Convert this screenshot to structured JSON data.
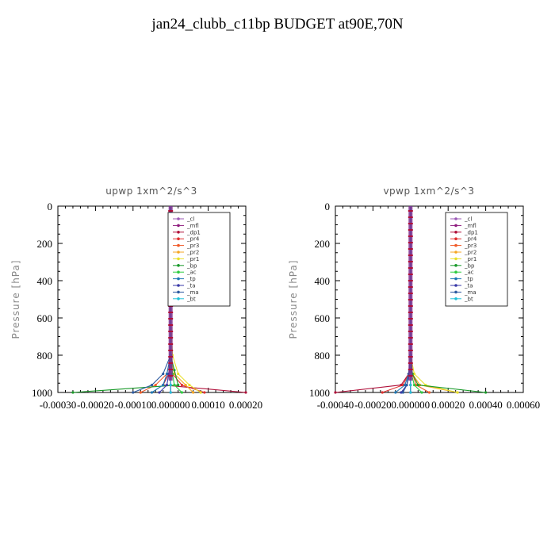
{
  "figure": {
    "title": "jan24_clubb_c11bp  BUDGET at90E,70N"
  },
  "chart_data": [
    {
      "type": "line",
      "title": "upwp   1xm^2/s^3",
      "ylabel": "Pressure [hPa]",
      "xlim": [
        -0.0003,
        0.0002
      ],
      "ylim": [
        1000,
        0
      ],
      "xticks": [
        -0.0003,
        -0.0002,
        -0.0001,
        0.0,
        0.0001,
        0.0002
      ],
      "xtick_labels": [
        "-0.00030",
        "-0.00020",
        "-0.00010",
        "0.000000",
        "0.00010",
        "0.00020"
      ],
      "yticks": [
        0,
        200,
        400,
        600,
        800,
        1000
      ],
      "ytick_labels": [
        "0",
        "200",
        "400",
        "600",
        "800",
        "1000"
      ],
      "legend": {
        "position": "top-right"
      },
      "series": [
        {
          "name": "_cl",
          "color": "#9b59b6",
          "x": [
            0,
            0,
            0,
            0,
            0,
            0,
            0,
            0
          ],
          "y": [
            0,
            200,
            400,
            600,
            800,
            900,
            960,
            1000
          ]
        },
        {
          "name": "_mfl",
          "color": "#8e1c7e",
          "x": [
            0,
            0,
            0,
            0,
            0,
            0,
            0,
            0
          ],
          "y": [
            0,
            200,
            400,
            600,
            800,
            900,
            960,
            1000
          ]
        },
        {
          "name": "_dp1",
          "color": "#b0103a",
          "x": [
            0,
            0,
            0,
            0,
            0,
            -5e-06,
            -2e-05,
            0.0002
          ],
          "y": [
            0,
            200,
            400,
            600,
            800,
            900,
            960,
            1000
          ]
        },
        {
          "name": "_pr4",
          "color": "#e0302f",
          "x": [
            0,
            0,
            0,
            0,
            0,
            5e-06,
            3e-05,
            9e-05
          ],
          "y": [
            0,
            200,
            400,
            600,
            800,
            900,
            960,
            1000
          ]
        },
        {
          "name": "_pr3",
          "color": "#f05a28",
          "x": [
            0,
            0,
            0,
            0,
            0,
            -1e-05,
            -4e-05,
            -8e-05
          ],
          "y": [
            0,
            200,
            400,
            600,
            800,
            900,
            960,
            1000
          ]
        },
        {
          "name": "_pr2",
          "color": "#f5a623",
          "x": [
            0,
            0,
            0,
            0,
            0,
            1e-05,
            4e-05,
            6e-05
          ],
          "y": [
            0,
            200,
            400,
            600,
            800,
            900,
            960,
            1000
          ]
        },
        {
          "name": "_pr1",
          "color": "#e8e02a",
          "x": [
            0,
            0,
            0,
            0,
            5e-06,
            2e-05,
            5e-05,
            8e-05
          ],
          "y": [
            0,
            200,
            400,
            600,
            800,
            900,
            960,
            1000
          ]
        },
        {
          "name": "_bp",
          "color": "#1a9a2a",
          "x": [
            0,
            0,
            0,
            0,
            0,
            1e-05,
            2e-05,
            -0.00026
          ],
          "y": [
            0,
            200,
            400,
            600,
            800,
            880,
            960,
            1000
          ]
        },
        {
          "name": "_ac",
          "color": "#2ecc40",
          "x": [
            0,
            0,
            0,
            0,
            0,
            5e-06,
            1e-05,
            3e-05
          ],
          "y": [
            0,
            200,
            400,
            600,
            800,
            900,
            960,
            1000
          ]
        },
        {
          "name": "_tp",
          "color": "#1f77b4",
          "x": [
            0,
            0,
            0,
            0,
            0,
            -1e-05,
            -2e-05,
            -5e-05
          ],
          "y": [
            0,
            200,
            400,
            600,
            800,
            900,
            960,
            1000
          ]
        },
        {
          "name": "_ta",
          "color": "#3a3aa8",
          "x": [
            0,
            0,
            0,
            0,
            0,
            -5e-06,
            -1e-05,
            -3e-05
          ],
          "y": [
            0,
            200,
            400,
            600,
            800,
            900,
            960,
            1000
          ]
        },
        {
          "name": "_ma",
          "color": "#2c5aa0",
          "x": [
            0,
            0,
            0,
            0,
            0,
            -2e-05,
            -5e-05,
            -0.0001
          ],
          "y": [
            0,
            200,
            400,
            600,
            800,
            900,
            960,
            1000
          ]
        },
        {
          "name": "_bt",
          "color": "#20c0d8",
          "x": [
            0,
            0,
            0,
            0,
            0,
            0,
            0,
            0
          ],
          "y": [
            0,
            200,
            400,
            600,
            800,
            900,
            960,
            1000
          ]
        }
      ]
    },
    {
      "type": "line",
      "title": "vpwp   1xm^2/s^3",
      "ylabel": "Pressure [hPa]",
      "xlim": [
        -0.0004,
        0.0006
      ],
      "ylim": [
        1000,
        0
      ],
      "xticks": [
        -0.0004,
        -0.0002,
        0.0,
        0.0002,
        0.0004,
        0.0006
      ],
      "xtick_labels": [
        "-0.00040",
        "-0.00020",
        "0.000000",
        "0.00020",
        "0.00040",
        "0.00060"
      ],
      "yticks": [
        0,
        200,
        400,
        600,
        800,
        1000
      ],
      "ytick_labels": [
        "0",
        "200",
        "400",
        "600",
        "800",
        "1000"
      ],
      "legend": {
        "position": "top-right"
      },
      "series": [
        {
          "name": "_cl",
          "color": "#9b59b6",
          "x": [
            0,
            0,
            0,
            0,
            0,
            0,
            0,
            0
          ],
          "y": [
            0,
            200,
            400,
            600,
            800,
            900,
            960,
            1000
          ]
        },
        {
          "name": "_mfl",
          "color": "#8e1c7e",
          "x": [
            0,
            0,
            0,
            0,
            0,
            0,
            0,
            0
          ],
          "y": [
            0,
            200,
            400,
            600,
            800,
            900,
            960,
            1000
          ]
        },
        {
          "name": "_dp1",
          "color": "#b0103a",
          "x": [
            0,
            0,
            0,
            0,
            0,
            -1e-05,
            -5e-05,
            -0.0004
          ],
          "y": [
            0,
            200,
            400,
            600,
            800,
            900,
            960,
            1000
          ]
        },
        {
          "name": "_pr4",
          "color": "#e0302f",
          "x": [
            0,
            0,
            0,
            0,
            0,
            -1e-05,
            -4e-05,
            -0.00015
          ],
          "y": [
            0,
            200,
            400,
            600,
            800,
            900,
            960,
            1000
          ]
        },
        {
          "name": "_pr3",
          "color": "#f05a28",
          "x": [
            0,
            0,
            0,
            0,
            0,
            1e-05,
            3e-05,
            0.0001
          ],
          "y": [
            0,
            200,
            400,
            600,
            800,
            900,
            960,
            1000
          ]
        },
        {
          "name": "_pr2",
          "color": "#f5a623",
          "x": [
            0,
            0,
            0,
            0,
            0,
            1e-05,
            5e-05,
            0.00025
          ],
          "y": [
            0,
            200,
            400,
            600,
            800,
            900,
            960,
            1000
          ]
        },
        {
          "name": "_pr1",
          "color": "#e8e02a",
          "x": [
            0,
            0,
            0,
            0,
            0,
            2e-05,
            8e-05,
            0.00025
          ],
          "y": [
            0,
            200,
            400,
            600,
            800,
            900,
            960,
            1000
          ]
        },
        {
          "name": "_bp",
          "color": "#1a9a2a",
          "x": [
            0,
            0,
            0,
            0,
            0,
            1e-05,
            4e-05,
            0.0004
          ],
          "y": [
            0,
            200,
            400,
            600,
            800,
            900,
            960,
            1000
          ]
        },
        {
          "name": "_ac",
          "color": "#2ecc40",
          "x": [
            0,
            0,
            0,
            0,
            0,
            5e-06,
            2e-05,
            6e-05
          ],
          "y": [
            0,
            200,
            400,
            600,
            800,
            900,
            960,
            1000
          ]
        },
        {
          "name": "_tp",
          "color": "#1f77b4",
          "x": [
            0,
            0,
            0,
            0,
            0,
            -1e-05,
            -3e-05,
            -8e-05
          ],
          "y": [
            0,
            200,
            400,
            600,
            800,
            900,
            960,
            1000
          ]
        },
        {
          "name": "_ta",
          "color": "#3a3aa8",
          "x": [
            0,
            0,
            0,
            0,
            0,
            -5e-06,
            -2e-05,
            -5e-05
          ],
          "y": [
            0,
            200,
            400,
            600,
            800,
            900,
            960,
            1000
          ]
        },
        {
          "name": "_ma",
          "color": "#2c5aa0",
          "x": [
            0,
            0,
            0,
            0,
            0,
            -1e-05,
            -2e-05,
            -4e-05
          ],
          "y": [
            0,
            200,
            400,
            600,
            800,
            900,
            960,
            1000
          ]
        },
        {
          "name": "_bt",
          "color": "#20c0d8",
          "x": [
            0,
            0,
            0,
            0,
            0,
            0,
            0,
            0
          ],
          "y": [
            0,
            200,
            400,
            600,
            800,
            900,
            960,
            1000
          ]
        }
      ]
    }
  ]
}
